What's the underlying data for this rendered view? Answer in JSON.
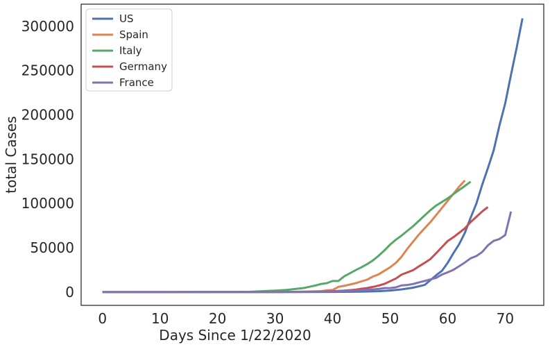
{
  "chart_data": {
    "type": "line",
    "title": "",
    "xlabel": "Days Since 1/22/2020",
    "ylabel": "total Cases",
    "xlim": [
      -3.7,
      76.7
    ],
    "ylim": [
      -15000,
      325000
    ],
    "xticks": [
      0,
      10,
      20,
      30,
      40,
      50,
      60,
      70
    ],
    "yticks": [
      0,
      50000,
      100000,
      150000,
      200000,
      250000,
      300000
    ],
    "grid": false,
    "legend_position": "top-left",
    "series": [
      {
        "name": "US",
        "color": "#4c72b0",
        "x": [
          0,
          10,
          20,
          30,
          35,
          40,
          45,
          48,
          50,
          52,
          54,
          56,
          58,
          59,
          60,
          61,
          62,
          63,
          64,
          65,
          66,
          67,
          68,
          69,
          70,
          71,
          72,
          73
        ],
        "y": [
          0,
          0,
          10,
          50,
          100,
          200,
          500,
          1000,
          1800,
          3000,
          5000,
          8000,
          19000,
          24000,
          33000,
          44000,
          54000,
          67000,
          84000,
          100000,
          121000,
          140000,
          160000,
          188000,
          213000,
          245000,
          276000,
          309000
        ]
      },
      {
        "name": "Spain",
        "color": "#dd8452",
        "x": [
          0,
          30,
          35,
          38,
          39,
          40,
          41,
          42,
          43,
          44,
          45,
          46,
          47,
          48,
          49,
          50,
          51,
          52,
          53,
          54,
          55,
          56,
          57,
          58,
          59,
          60,
          61,
          62,
          63
        ],
        "y": [
          0,
          100,
          400,
          1000,
          2000,
          2300,
          5800,
          7000,
          8500,
          10000,
          12000,
          14000,
          17500,
          20000,
          24000,
          28000,
          33000,
          40000,
          49000,
          57000,
          65000,
          72000,
          79000,
          87000,
          95000,
          103000,
          111000,
          119000,
          126000
        ]
      },
      {
        "name": "Italy",
        "color": "#55a868",
        "x": [
          0,
          25,
          30,
          32,
          34,
          35,
          36,
          37,
          38,
          39,
          40,
          41,
          42,
          43,
          44,
          45,
          46,
          47,
          48,
          49,
          50,
          51,
          52,
          53,
          54,
          55,
          56,
          57,
          58,
          59,
          60,
          61,
          62,
          63,
          64
        ],
        "y": [
          0,
          100,
          1700,
          2500,
          3900,
          4600,
          6000,
          7400,
          9100,
          10100,
          12500,
          12500,
          17700,
          21200,
          24700,
          27900,
          31500,
          35700,
          41000,
          47000,
          53600,
          59100,
          63900,
          69200,
          74400,
          80500,
          86500,
          92500,
          97700,
          101700,
          105800,
          110600,
          115200,
          119800,
          124600
        ]
      },
      {
        "name": "Germany",
        "color": "#c44e52",
        "x": [
          0,
          30,
          35,
          40,
          42,
          44,
          45,
          46,
          47,
          48,
          49,
          50,
          51,
          52,
          53,
          54,
          55,
          56,
          57,
          58,
          59,
          60,
          61,
          62,
          63,
          64,
          65,
          66,
          67
        ],
        "y": [
          0,
          50,
          300,
          1000,
          1600,
          2700,
          3700,
          4600,
          5800,
          7300,
          9200,
          12300,
          15300,
          19800,
          22200,
          24800,
          29000,
          33000,
          37300,
          43900,
          50800,
          57600,
          61900,
          66900,
          72000,
          79000,
          85000,
          91000,
          96000
        ]
      },
      {
        "name": "France",
        "color": "#8172b3",
        "x": [
          0,
          30,
          40,
          45,
          48,
          49,
          50,
          51,
          52,
          53,
          54,
          55,
          56,
          57,
          58,
          59,
          60,
          61,
          62,
          63,
          64,
          65,
          66,
          67,
          68,
          69,
          70,
          71
        ],
        "y": [
          0,
          100,
          700,
          2000,
          3500,
          4500,
          4500,
          5400,
          7600,
          8000,
          9100,
          10900,
          12600,
          14300,
          16000,
          19800,
          22300,
          25200,
          29200,
          33400,
          38100,
          40700,
          45200,
          52800,
          57800,
          59900,
          64300,
          90800
        ]
      }
    ]
  }
}
